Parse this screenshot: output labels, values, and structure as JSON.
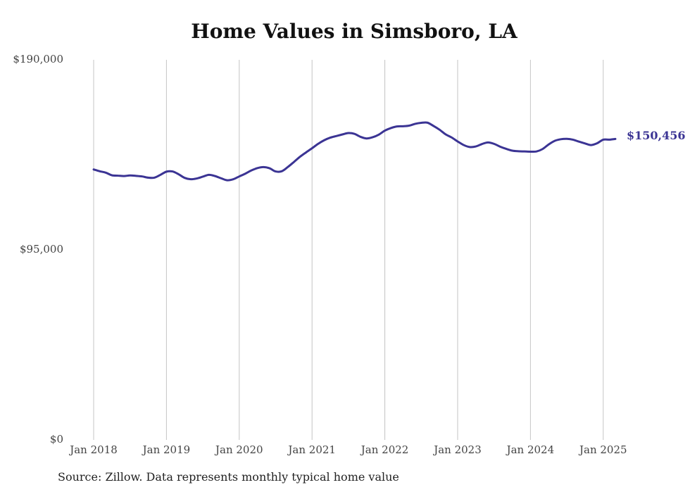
{
  "chart_data": {
    "type": "line",
    "title": "Home Values in Simsboro, LA",
    "xlabel": "",
    "ylabel": "",
    "ylim": [
      0,
      190000
    ],
    "y_ticks": [
      "$190,000",
      "$95,000",
      "$0"
    ],
    "y_tick_values": [
      190000,
      95000,
      0
    ],
    "x_ticks": [
      "Jan 2018",
      "Jan 2019",
      "Jan 2020",
      "Jan 2021",
      "Jan 2022",
      "Jan 2023",
      "Jan 2024",
      "Jan 2025"
    ],
    "x_tick_values": [
      "2018-01",
      "2019-01",
      "2020-01",
      "2021-01",
      "2022-01",
      "2023-01",
      "2024-01",
      "2025-01"
    ],
    "xlim": [
      "2018-01",
      "2025-03"
    ],
    "grid": "vertical",
    "series": [
      {
        "color": "#3b3494",
        "end_label": "$150,456",
        "x": [
          "2018-01",
          "2018-02",
          "2018-03",
          "2018-04",
          "2018-05",
          "2018-06",
          "2018-07",
          "2018-08",
          "2018-09",
          "2018-10",
          "2018-11",
          "2018-12",
          "2019-01",
          "2019-02",
          "2019-03",
          "2019-04",
          "2019-05",
          "2019-06",
          "2019-07",
          "2019-08",
          "2019-09",
          "2019-10",
          "2019-11",
          "2019-12",
          "2020-01",
          "2020-02",
          "2020-03",
          "2020-04",
          "2020-05",
          "2020-06",
          "2020-07",
          "2020-08",
          "2020-09",
          "2020-10",
          "2020-11",
          "2020-12",
          "2021-01",
          "2021-02",
          "2021-03",
          "2021-04",
          "2021-05",
          "2021-06",
          "2021-07",
          "2021-08",
          "2021-09",
          "2021-10",
          "2021-11",
          "2021-12",
          "2022-01",
          "2022-02",
          "2022-03",
          "2022-04",
          "2022-05",
          "2022-06",
          "2022-07",
          "2022-08",
          "2022-09",
          "2022-10",
          "2022-11",
          "2022-12",
          "2023-01",
          "2023-02",
          "2023-03",
          "2023-04",
          "2023-05",
          "2023-06",
          "2023-07",
          "2023-08",
          "2023-09",
          "2023-10",
          "2023-11",
          "2023-12",
          "2024-01",
          "2024-02",
          "2024-03",
          "2024-04",
          "2024-05",
          "2024-06",
          "2024-07",
          "2024-08",
          "2024-09",
          "2024-10",
          "2024-11",
          "2024-12",
          "2025-01",
          "2025-02",
          "2025-03"
        ],
        "values": [
          135200,
          134300,
          133600,
          132300,
          132100,
          131900,
          132200,
          132000,
          131700,
          131100,
          131100,
          132500,
          134100,
          134200,
          132800,
          131000,
          130300,
          130700,
          131600,
          132500,
          131900,
          130800,
          129800,
          130300,
          131700,
          133100,
          134700,
          135900,
          136400,
          135800,
          134200,
          134300,
          136400,
          138900,
          141500,
          143700,
          145800,
          148000,
          149800,
          151100,
          151900,
          152700,
          153400,
          153000,
          151500,
          150700,
          151300,
          152600,
          154600,
          155900,
          156700,
          156800,
          157100,
          158000,
          158500,
          158600,
          157000,
          155100,
          152800,
          151200,
          149200,
          147400,
          146400,
          146700,
          147900,
          148700,
          148000,
          146600,
          145500,
          144600,
          144300,
          144200,
          144100,
          144200,
          145400,
          147700,
          149500,
          150300,
          150500,
          150100,
          149100,
          148200,
          147400,
          148300,
          150100,
          150100,
          150456
        ]
      }
    ]
  },
  "source_note": "Source: Zillow. Data represents monthly typical home value"
}
